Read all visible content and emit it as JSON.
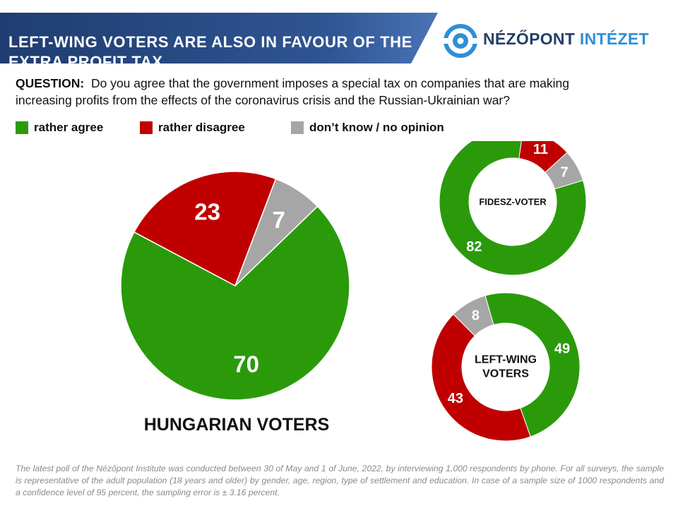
{
  "header": {
    "title": "LEFT-WING VOTERS ARE ALSO IN FAVOUR OF THE EXTRA PROFIT TAX",
    "banner_color": "#2a4a7f"
  },
  "logo": {
    "name_part1": "NÉZŐPONT",
    "name_part2": "INTÉZET",
    "icon": "target-eye-icon",
    "color": "#2f8fd6"
  },
  "question": {
    "label": "QUESTION:",
    "text": "Do you agree that the government imposes a special tax on companies that are making increasing profits from the effects of the coronavirus crisis and the Russian-Ukrainian war?"
  },
  "legend": [
    {
      "label": "rather agree",
      "color": "#2a9a0b"
    },
    {
      "label": "rather disagree",
      "color": "#c00000"
    },
    {
      "label": "don’t know / no opinion",
      "color": "#a6a6a6"
    }
  ],
  "chart_data": [
    {
      "type": "pie",
      "title": "HUNGARIAN VOTERS",
      "categories": [
        "rather agree",
        "rather disagree",
        "don’t know / no opinion"
      ],
      "values": [
        70,
        23,
        7
      ],
      "colors": [
        "#2a9a0b",
        "#c00000",
        "#a6a6a6"
      ]
    },
    {
      "type": "pie",
      "style": "donut",
      "title": "FIDESZ-VOTER",
      "categories": [
        "rather agree",
        "rather disagree",
        "don’t know / no opinion"
      ],
      "values": [
        82,
        11,
        7
      ],
      "colors": [
        "#2a9a0b",
        "#c00000",
        "#a6a6a6"
      ]
    },
    {
      "type": "pie",
      "style": "donut",
      "title": "LEFT-WING VOTERS",
      "categories": [
        "rather agree",
        "rather disagree",
        "don’t know / no opinion"
      ],
      "values": [
        49,
        43,
        8
      ],
      "colors": [
        "#2a9a0b",
        "#c00000",
        "#a6a6a6"
      ]
    }
  ],
  "footnote": "The latest poll of the Nézőpont Institute was conducted between 30 of May and 1 of June, 2022, by interviewing 1,000 respondents by phone. For all surveys, the sample is representative of the adult population (18 years and older) by gender, age, region, type of settlement and education. In case of a sample size of 1000 respondents and a confidence level of 95 percent, the sampling error is ± 3.16 percent."
}
